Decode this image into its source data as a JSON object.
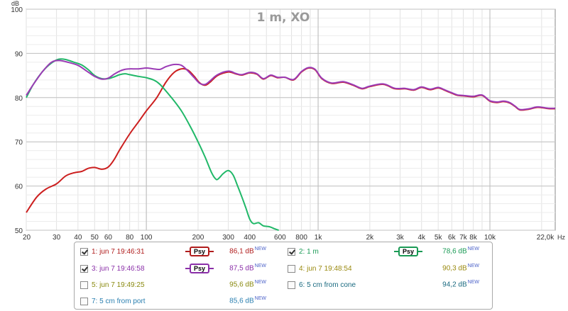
{
  "chart_data": {
    "type": "line",
    "title": "1 m, XO",
    "ylabel": "dB",
    "xlabel": "Hz",
    "x_scale": "log",
    "xlim": [
      20,
      24000
    ],
    "ylim": [
      50,
      100
    ],
    "y_ticks": [
      50,
      60,
      70,
      80,
      90,
      100
    ],
    "x_ticks": [
      {
        "v": 20,
        "t": "20"
      },
      {
        "v": 30,
        "t": "30"
      },
      {
        "v": 40,
        "t": "40"
      },
      {
        "v": 50,
        "t": "50"
      },
      {
        "v": 60,
        "t": "60"
      },
      {
        "v": 80,
        "t": "80"
      },
      {
        "v": 100,
        "t": "100"
      },
      {
        "v": 200,
        "t": "200"
      },
      {
        "v": 300,
        "t": "300"
      },
      {
        "v": 400,
        "t": "400"
      },
      {
        "v": 600,
        "t": "600"
      },
      {
        "v": 800,
        "t": "800"
      },
      {
        "v": 1000,
        "t": "1k"
      },
      {
        "v": 2000,
        "t": "2k"
      },
      {
        "v": 3000,
        "t": "3k"
      },
      {
        "v": 4000,
        "t": "4k"
      },
      {
        "v": 5000,
        "t": "5k"
      },
      {
        "v": 6000,
        "t": "6k"
      },
      {
        "v": 7000,
        "t": "7k"
      },
      {
        "v": 8000,
        "t": "8k"
      },
      {
        "v": 10000,
        "t": "10k"
      },
      {
        "v": 22000,
        "t": "22,0k"
      }
    ],
    "grid": true,
    "series": [
      {
        "name": "1: jun 7 19:46:31",
        "color": "#cc1f1f",
        "points": [
          [
            20,
            54
          ],
          [
            23,
            57.5
          ],
          [
            26,
            59.3
          ],
          [
            30,
            60.5
          ],
          [
            34,
            62.3
          ],
          [
            38,
            63
          ],
          [
            42,
            63.3
          ],
          [
            46,
            64
          ],
          [
            50,
            64.2
          ],
          [
            55,
            63.8
          ],
          [
            60,
            64.3
          ],
          [
            65,
            66
          ],
          [
            70,
            68.2
          ],
          [
            80,
            71.8
          ],
          [
            90,
            74.5
          ],
          [
            100,
            77
          ],
          [
            115,
            80
          ],
          [
            130,
            83.5
          ],
          [
            145,
            85.7
          ],
          [
            160,
            86.5
          ],
          [
            175,
            86.2
          ],
          [
            190,
            84.8
          ],
          [
            205,
            83.3
          ],
          [
            220,
            82.8
          ],
          [
            235,
            83.5
          ],
          [
            260,
            85
          ],
          [
            300,
            85.8
          ],
          [
            330,
            85.4
          ],
          [
            360,
            85.1
          ],
          [
            400,
            85.6
          ],
          [
            440,
            85.3
          ],
          [
            480,
            84.2
          ],
          [
            530,
            85
          ],
          [
            580,
            84.5
          ],
          [
            640,
            84.6
          ],
          [
            720,
            84
          ],
          [
            800,
            85.8
          ],
          [
            880,
            86.7
          ],
          [
            960,
            86.3
          ],
          [
            1050,
            84.3
          ],
          [
            1200,
            83.2
          ],
          [
            1400,
            83.5
          ],
          [
            1600,
            82.8
          ],
          [
            1800,
            82
          ],
          [
            2000,
            82.5
          ],
          [
            2400,
            83
          ],
          [
            2800,
            82
          ],
          [
            3200,
            82
          ],
          [
            3600,
            81.7
          ],
          [
            4000,
            82.3
          ],
          [
            4500,
            81.8
          ],
          [
            5000,
            82.2
          ],
          [
            5500,
            81.6
          ],
          [
            6000,
            81
          ],
          [
            6500,
            80.5
          ],
          [
            7000,
            80.4
          ],
          [
            8000,
            80.2
          ],
          [
            9000,
            80.5
          ],
          [
            10000,
            79.2
          ],
          [
            11000,
            78.9
          ],
          [
            12000,
            79.1
          ],
          [
            13000,
            78.8
          ],
          [
            14000,
            78
          ],
          [
            15000,
            77.2
          ],
          [
            17000,
            77.4
          ],
          [
            19000,
            77.8
          ],
          [
            22000,
            77.5
          ],
          [
            24000,
            77.5
          ]
        ]
      },
      {
        "name": "2: 1 m",
        "color": "#20b868",
        "points": [
          [
            20,
            80
          ],
          [
            22,
            83
          ],
          [
            25,
            86
          ],
          [
            28,
            87.8
          ],
          [
            31,
            88.7
          ],
          [
            34,
            88.6
          ],
          [
            38,
            88
          ],
          [
            42,
            87.4
          ],
          [
            46,
            86.3
          ],
          [
            50,
            85
          ],
          [
            55,
            84.3
          ],
          [
            60,
            84.3
          ],
          [
            65,
            84.7
          ],
          [
            70,
            85.2
          ],
          [
            75,
            85.4
          ],
          [
            80,
            85.2
          ],
          [
            90,
            84.8
          ],
          [
            100,
            84.5
          ],
          [
            110,
            84
          ],
          [
            120,
            83
          ],
          [
            140,
            80
          ],
          [
            160,
            77
          ],
          [
            180,
            73.5
          ],
          [
            200,
            70
          ],
          [
            220,
            66.5
          ],
          [
            240,
            63
          ],
          [
            255,
            61.5
          ],
          [
            265,
            61.8
          ],
          [
            280,
            62.8
          ],
          [
            300,
            63.5
          ],
          [
            320,
            62.5
          ],
          [
            340,
            60
          ],
          [
            360,
            57.5
          ],
          [
            380,
            55
          ],
          [
            400,
            52.5
          ],
          [
            420,
            51.5
          ],
          [
            450,
            51.7
          ],
          [
            480,
            51
          ],
          [
            520,
            50.8
          ],
          [
            560,
            50.3
          ],
          [
            590,
            50
          ]
        ]
      },
      {
        "name": "3: jun 7 19:46:58",
        "color": "#9b3bb5",
        "points": [
          [
            20,
            80.5
          ],
          [
            22,
            83
          ],
          [
            25,
            86
          ],
          [
            28,
            88
          ],
          [
            31,
            88.4
          ],
          [
            35,
            88
          ],
          [
            40,
            87.3
          ],
          [
            45,
            86
          ],
          [
            50,
            84.8
          ],
          [
            55,
            84.2
          ],
          [
            60,
            84.4
          ],
          [
            65,
            85.3
          ],
          [
            70,
            86
          ],
          [
            75,
            86.4
          ],
          [
            80,
            86.5
          ],
          [
            90,
            86.5
          ],
          [
            100,
            86.7
          ],
          [
            110,
            86.5
          ],
          [
            120,
            86.4
          ],
          [
            130,
            87
          ],
          [
            145,
            87.5
          ],
          [
            160,
            87.3
          ],
          [
            175,
            86
          ],
          [
            190,
            84.5
          ],
          [
            205,
            83.2
          ],
          [
            220,
            83
          ],
          [
            235,
            83.8
          ],
          [
            260,
            85.2
          ],
          [
            300,
            86
          ],
          [
            330,
            85.5
          ],
          [
            360,
            85.2
          ],
          [
            400,
            85.7
          ],
          [
            440,
            85.4
          ],
          [
            480,
            84.3
          ],
          [
            530,
            85.1
          ],
          [
            580,
            84.6
          ],
          [
            640,
            84.6
          ],
          [
            720,
            84.1
          ],
          [
            800,
            85.9
          ],
          [
            880,
            86.8
          ],
          [
            960,
            86.4
          ],
          [
            1050,
            84.4
          ],
          [
            1200,
            83.3
          ],
          [
            1400,
            83.6
          ],
          [
            1600,
            82.9
          ],
          [
            1800,
            82.1
          ],
          [
            2000,
            82.6
          ],
          [
            2400,
            83.1
          ],
          [
            2800,
            82.1
          ],
          [
            3200,
            82.1
          ],
          [
            3600,
            81.8
          ],
          [
            4000,
            82.4
          ],
          [
            4500,
            81.9
          ],
          [
            5000,
            82.3
          ],
          [
            5500,
            81.7
          ],
          [
            6000,
            81.1
          ],
          [
            6500,
            80.6
          ],
          [
            7000,
            80.5
          ],
          [
            8000,
            80.3
          ],
          [
            9000,
            80.6
          ],
          [
            10000,
            79.3
          ],
          [
            11000,
            79
          ],
          [
            12000,
            79.2
          ],
          [
            13000,
            78.9
          ],
          [
            14000,
            78.1
          ],
          [
            15000,
            77.3
          ],
          [
            17000,
            77.5
          ],
          [
            19000,
            77.9
          ],
          [
            22000,
            77.6
          ],
          [
            24000,
            77.6
          ]
        ]
      }
    ]
  },
  "legend": [
    {
      "label": "1: jun 7 19:46:31",
      "checked": true,
      "psy": "Psy",
      "color": "#b01c1c",
      "value": "86,1 dB",
      "sup": "NEW"
    },
    {
      "label": "2: 1 m",
      "checked": true,
      "psy": "Psy",
      "color": "#1a9a55",
      "value": "78,6 dB",
      "sup": "NEW"
    },
    {
      "label": "3: jun 7 19:46:58",
      "checked": true,
      "psy": "Psy",
      "color": "#8a2fa8",
      "value": "87,5 dB",
      "sup": "NEW"
    },
    {
      "label": "4: jun 7 19:48:54",
      "checked": false,
      "psy": "",
      "color": "#9a8a10",
      "value": "90,3 dB",
      "sup": "NEW"
    },
    {
      "label": "5: jun 7 19:49:25",
      "checked": false,
      "psy": "",
      "color": "#8a8a10",
      "value": "95,6 dB",
      "sup": "NEW"
    },
    {
      "label": "6: 5 cm from cone",
      "checked": false,
      "psy": "",
      "color": "#1a6a80",
      "value": "94,2 dB",
      "sup": "NEW"
    },
    {
      "label": "7: 5 cm from port",
      "checked": false,
      "psy": "",
      "color": "#2a7fb0",
      "value": "85,6 dB",
      "sup": "NEW"
    }
  ]
}
